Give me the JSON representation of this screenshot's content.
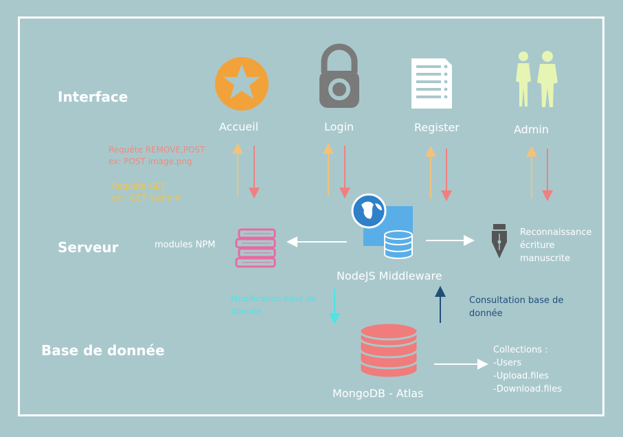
{
  "rows": {
    "interface": "Interface",
    "serveur": "Serveur",
    "base": "Base de donnée"
  },
  "nodes": {
    "accueil": "Accueil",
    "login": "Login",
    "register": "Register",
    "admin": "Admin",
    "modules_npm": "modules NPM",
    "middleware": "NodeJS Middleware",
    "reconnaissance": [
      "Reconnaissance",
      "écriture",
      "manuscrite"
    ],
    "mongodb": "MongoDB - Atlas"
  },
  "notes": {
    "remove_post": [
      "Requête REMOVE,POST",
      "ex: POST image.png"
    ],
    "get": [
      "Requête GET",
      "ex : GET '/admin'"
    ],
    "modification": [
      "Modification base de",
      "donnée"
    ],
    "consultation": [
      "Consultation base de",
      "donnée"
    ],
    "collections": [
      "Collections :",
      "-Users",
      "-Upload.files",
      "-Download.files"
    ]
  },
  "colors": {
    "background": "#a9c8cc",
    "frame": "#ffffff",
    "arrow_get": "#f2c27a",
    "arrow_post": "#f08080",
    "note_post": "#f08a7e",
    "note_get": "#f5c542",
    "modification": "#4fe3e3",
    "consultation": "#1f4e79",
    "star_circle": "#f2a23a",
    "lock": "#7a7a7a",
    "silhouette": "#e6f5b3",
    "books": "#e96aa0",
    "database": "#f07c7c",
    "middleware_box": "#5aaee8"
  },
  "icons": {
    "accueil": "star-icon",
    "login": "lock-icon",
    "register": "clipboard-icon",
    "admin": "people-icon",
    "modules_npm": "books-icon",
    "middleware": "globe-database-icon",
    "reconnaissance": "fountain-pen-icon",
    "mongodb": "database-icon"
  }
}
